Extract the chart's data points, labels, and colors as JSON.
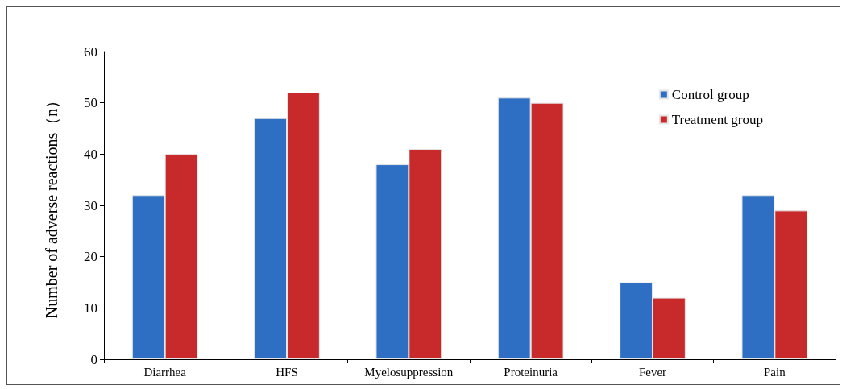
{
  "chart_data": {
    "type": "bar",
    "ylabel": "Number of adverse reactions（n）",
    "categories": [
      "Diarrhea",
      "HFS",
      "Myelosuppression",
      "Proteinuria",
      "Fever",
      "Pain"
    ],
    "series": [
      {
        "name": "Control group",
        "color": "#2e6fc4",
        "values": [
          32,
          47,
          38,
          51,
          15,
          32
        ]
      },
      {
        "name": "Treatment group",
        "color": "#c8292a",
        "values": [
          40,
          52,
          41,
          50,
          12,
          29
        ]
      }
    ],
    "ylim": [
      0,
      60
    ],
    "yticks": [
      0,
      10,
      20,
      30,
      40,
      50,
      60
    ],
    "grid": false,
    "legend": "top right"
  }
}
